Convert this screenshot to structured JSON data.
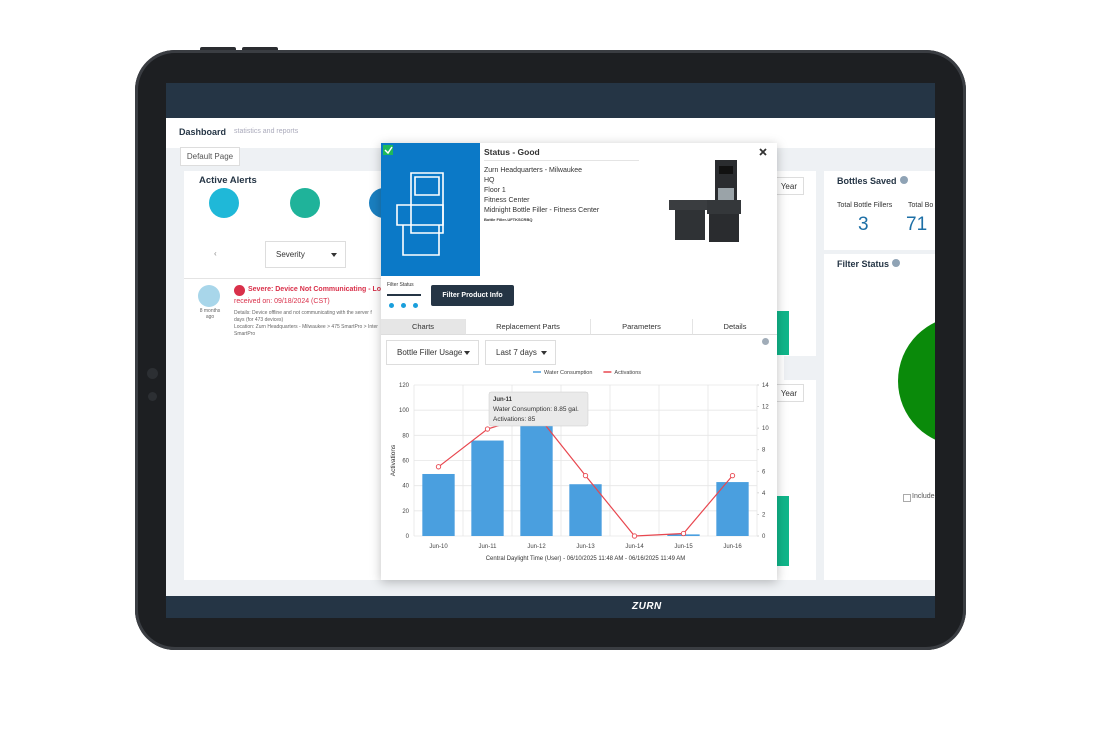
{
  "header": {
    "title": "Dashboard",
    "subtitle": "statistics and reports",
    "default_page": "Default Page"
  },
  "alerts": {
    "title": "Active Alerts",
    "filter": "Severity",
    "age": "8 months ago",
    "headline": "Severe: Device Not Communicating - Lost",
    "received": "received on: 09/18/2024 (CST)",
    "details": [
      "Details: Device offline and not communicating with the server f",
      "days (for 473 devices)",
      "Location: Zurn Headquarters - Milwaukee > 475 SmartPro > Inter",
      "SmartPro"
    ]
  },
  "bottles": {
    "title": "Bottles Saved",
    "label_fillers": "Total Bottle Fillers",
    "label_bottles": "Total Bo",
    "fillers": "3",
    "bottles": "71"
  },
  "filter_panel": {
    "title": "Filter Status",
    "include": "Include"
  },
  "year_button": "Year",
  "modal": {
    "status": "Status - Good",
    "location": [
      "Zurn Headquarters - Milwaukee",
      "HQ",
      "Floor 1",
      "Fitness Center",
      "Midnight Bottle Filler - Fitness Center"
    ],
    "device_id": "Bottle Filler-UFTKSCRBQ",
    "filter_status": "Filter Status",
    "button": "Filter Product Info",
    "tabs": [
      "Charts",
      "Replacement Parts",
      "Parameters",
      "Details"
    ],
    "dropdowns": [
      "Bottle Filler Usage",
      "Last 7 days"
    ]
  },
  "footer": {
    "logo": "ZURN"
  },
  "chart_data": {
    "type": "combo",
    "categories": [
      "Jun-10",
      "Jun-11",
      "Jun-12",
      "Jun-13",
      "Jun-14",
      "Jun-15",
      "Jun-16"
    ],
    "series": [
      {
        "name": "Water Consumption",
        "type": "bar",
        "axis": "y2",
        "color": "#4a9fdf",
        "values": [
          5.75,
          8.85,
          10.3,
          4.8,
          0,
          0.15,
          5.0
        ]
      },
      {
        "name": "Activations",
        "type": "line",
        "color": "#e8474f",
        "values": [
          55,
          85,
          97,
          48,
          0,
          2,
          48
        ]
      }
    ],
    "ylabel": "Activations",
    "xlabel": "Central Daylight Time (User) - 06/10/2025 11:48 AM - 06/16/2025 11:49 AM",
    "ylim": [
      0,
      120
    ],
    "yticks": [
      0,
      20,
      40,
      60,
      80,
      100,
      120
    ],
    "y2lim": [
      0,
      14
    ],
    "y2ticks": [
      0,
      2,
      4,
      6,
      8,
      10,
      12,
      14
    ],
    "grid": true,
    "tooltip": {
      "title": "Jun-11",
      "lines": [
        "Water Consumption: 8.85 gal.",
        "Activations: 85"
      ]
    }
  }
}
